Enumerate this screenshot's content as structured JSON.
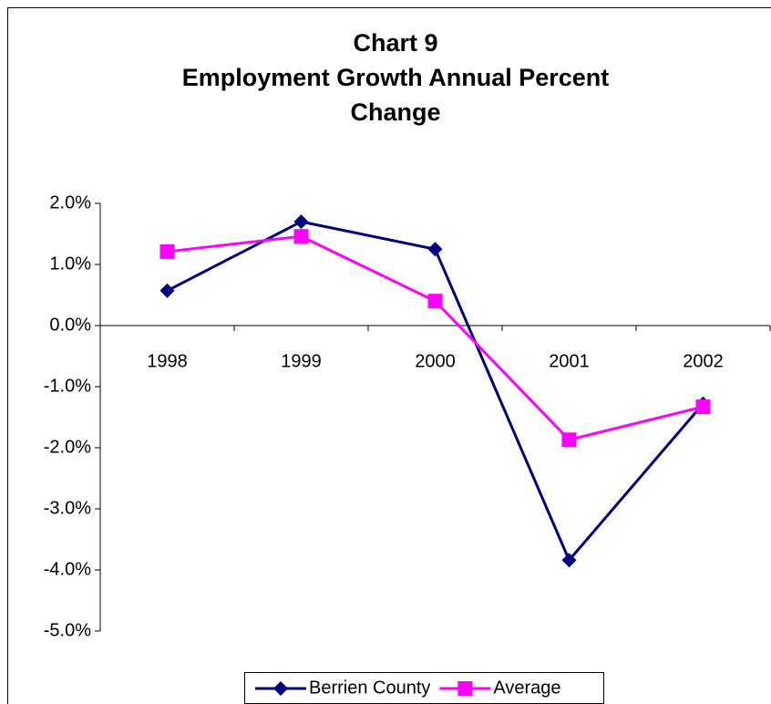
{
  "chart_data": {
    "type": "line",
    "title": [
      "Chart 9",
      "Employment Growth Annual Percent",
      "Change"
    ],
    "categories": [
      "1998",
      "1999",
      "2000",
      "2001",
      "2002"
    ],
    "series": [
      {
        "name": "Berrien County",
        "color": "#000080",
        "marker": "diamond",
        "values": [
          0.57,
          1.7,
          1.25,
          -3.84,
          -1.28
        ]
      },
      {
        "name": "Average",
        "color": "#ff00ff",
        "marker": "square",
        "values": [
          1.21,
          1.46,
          0.4,
          -1.87,
          -1.33
        ]
      }
    ],
    "ylim": [
      -5,
      2
    ],
    "yticks": [
      {
        "value": 2,
        "label": "2.0%"
      },
      {
        "value": 1,
        "label": "1.0%"
      },
      {
        "value": 0,
        "label": "0.0%"
      },
      {
        "value": -1,
        "label": "-1.0%"
      },
      {
        "value": -2,
        "label": "-2.0%"
      },
      {
        "value": -3,
        "label": "-3.0%"
      },
      {
        "value": -4,
        "label": "-4.0%"
      },
      {
        "value": -5,
        "label": "-5.0%"
      }
    ],
    "grid": false,
    "legend": "bottom"
  }
}
